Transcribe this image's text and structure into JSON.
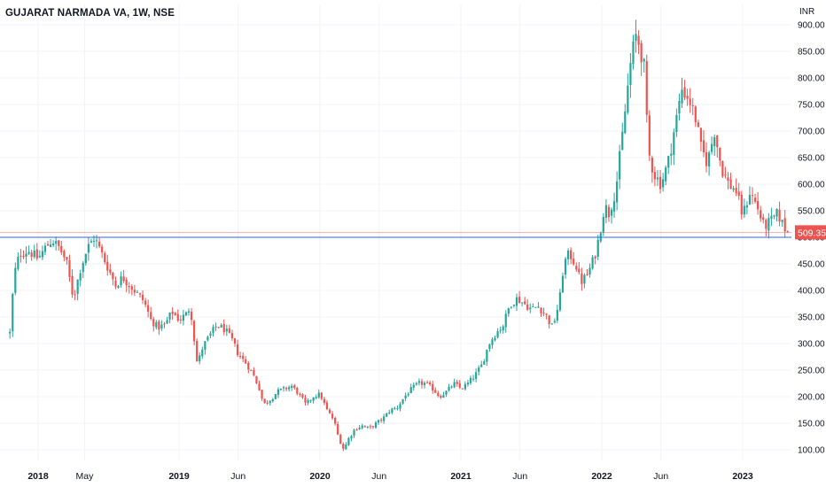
{
  "header": {
    "title": "GUJARAT NARMADA VA, 1W, NSE",
    "currency": "INR"
  },
  "colors": {
    "up": "#26a69a",
    "down": "#ef5350",
    "grid": "#f0f3fa",
    "support_line": "#2962ff",
    "current_price_line": "#ef5350",
    "axis_text": "#131722"
  },
  "chart_data": {
    "type": "candlestick",
    "title": "GUJARAT NARMADA VA, 1W, NSE",
    "ylabel": "INR",
    "ylim": [
      85,
      920
    ],
    "y_ticks": [
      "100.00",
      "150.00",
      "200.00",
      "250.00",
      "300.00",
      "350.00",
      "400.00",
      "450.00",
      "500.00",
      "550.00",
      "600.00",
      "650.00",
      "700.00",
      "750.00",
      "800.00",
      "850.00",
      "900.00"
    ],
    "x_ticks": [
      {
        "label": "2018",
        "t": 2018.0,
        "bold": true
      },
      {
        "label": "May",
        "t": 2018.33,
        "bold": false
      },
      {
        "label": "2019",
        "t": 2019.0,
        "bold": true
      },
      {
        "label": "Jun",
        "t": 2019.42,
        "bold": false
      },
      {
        "label": "2020",
        "t": 2020.0,
        "bold": true
      },
      {
        "label": "Jun",
        "t": 2020.42,
        "bold": false
      },
      {
        "label": "2021",
        "t": 2021.0,
        "bold": true
      },
      {
        "label": "Jun",
        "t": 2021.42,
        "bold": false
      },
      {
        "label": "2022",
        "t": 2022.0,
        "bold": true
      },
      {
        "label": "Jun",
        "t": 2022.42,
        "bold": false
      },
      {
        "label": "2023",
        "t": 2023.0,
        "bold": true
      }
    ],
    "x_range": [
      2017.8,
      2023.5
    ],
    "last_price": 509.35,
    "last_price_label": "509.35",
    "support_level": 500,
    "waypoints": [
      [
        2017.8,
        320
      ],
      [
        2017.83,
        430
      ],
      [
        2017.87,
        470
      ],
      [
        2017.93,
        475
      ],
      [
        2018.0,
        460
      ],
      [
        2018.05,
        480
      ],
      [
        2018.1,
        495
      ],
      [
        2018.15,
        480
      ],
      [
        2018.2,
        455
      ],
      [
        2018.25,
        385
      ],
      [
        2018.3,
        440
      ],
      [
        2018.35,
        480
      ],
      [
        2018.4,
        500
      ],
      [
        2018.45,
        470
      ],
      [
        2018.5,
        440
      ],
      [
        2018.55,
        410
      ],
      [
        2018.6,
        425
      ],
      [
        2018.65,
        410
      ],
      [
        2018.7,
        395
      ],
      [
        2018.75,
        380
      ],
      [
        2018.8,
        345
      ],
      [
        2018.85,
        330
      ],
      [
        2018.9,
        335
      ],
      [
        2018.95,
        360
      ],
      [
        2019.0,
        345
      ],
      [
        2019.05,
        355
      ],
      [
        2019.08,
        370
      ],
      [
        2019.1,
        325
      ],
      [
        2019.13,
        260
      ],
      [
        2019.17,
        295
      ],
      [
        2019.23,
        320
      ],
      [
        2019.27,
        335
      ],
      [
        2019.33,
        325
      ],
      [
        2019.38,
        305
      ],
      [
        2019.42,
        280
      ],
      [
        2019.47,
        265
      ],
      [
        2019.52,
        245
      ],
      [
        2019.57,
        215
      ],
      [
        2019.6,
        185
      ],
      [
        2019.65,
        195
      ],
      [
        2019.7,
        210
      ],
      [
        2019.75,
        215
      ],
      [
        2019.8,
        220
      ],
      [
        2019.85,
        205
      ],
      [
        2019.9,
        185
      ],
      [
        2019.95,
        200
      ],
      [
        2020.0,
        205
      ],
      [
        2020.05,
        175
      ],
      [
        2020.1,
        155
      ],
      [
        2020.13,
        125
      ],
      [
        2020.17,
        100
      ],
      [
        2020.2,
        120
      ],
      [
        2020.25,
        140
      ],
      [
        2020.3,
        145
      ],
      [
        2020.35,
        140
      ],
      [
        2020.4,
        150
      ],
      [
        2020.45,
        160
      ],
      [
        2020.5,
        175
      ],
      [
        2020.55,
        180
      ],
      [
        2020.6,
        200
      ],
      [
        2020.65,
        215
      ],
      [
        2020.7,
        225
      ],
      [
        2020.75,
        225
      ],
      [
        2020.8,
        215
      ],
      [
        2020.85,
        200
      ],
      [
        2020.9,
        210
      ],
      [
        2020.95,
        225
      ],
      [
        2021.0,
        215
      ],
      [
        2021.05,
        225
      ],
      [
        2021.1,
        240
      ],
      [
        2021.15,
        260
      ],
      [
        2021.2,
        300
      ],
      [
        2021.25,
        320
      ],
      [
        2021.3,
        335
      ],
      [
        2021.35,
        375
      ],
      [
        2021.4,
        385
      ],
      [
        2021.45,
        375
      ],
      [
        2021.5,
        365
      ],
      [
        2021.55,
        370
      ],
      [
        2021.6,
        355
      ],
      [
        2021.65,
        330
      ],
      [
        2021.7,
        380
      ],
      [
        2021.73,
        450
      ],
      [
        2021.77,
        470
      ],
      [
        2021.82,
        445
      ],
      [
        2021.85,
        415
      ],
      [
        2021.9,
        430
      ],
      [
        2021.95,
        465
      ],
      [
        2021.98,
        500
      ],
      [
        2022.02,
        560
      ],
      [
        2022.05,
        545
      ],
      [
        2022.1,
        590
      ],
      [
        2022.15,
        700
      ],
      [
        2022.2,
        820
      ],
      [
        2022.24,
        880
      ],
      [
        2022.27,
        860
      ],
      [
        2022.3,
        820
      ],
      [
        2022.33,
        660
      ],
      [
        2022.37,
        620
      ],
      [
        2022.42,
        600
      ],
      [
        2022.47,
        640
      ],
      [
        2022.52,
        710
      ],
      [
        2022.57,
        780
      ],
      [
        2022.62,
        760
      ],
      [
        2022.67,
        720
      ],
      [
        2022.7,
        670
      ],
      [
        2022.75,
        640
      ],
      [
        2022.8,
        700
      ],
      [
        2022.85,
        630
      ],
      [
        2022.9,
        600
      ],
      [
        2022.95,
        590
      ],
      [
        2023.0,
        540
      ],
      [
        2023.05,
        585
      ],
      [
        2023.1,
        560
      ],
      [
        2023.15,
        520
      ],
      [
        2023.2,
        530
      ],
      [
        2023.25,
        545
      ],
      [
        2023.29,
        520
      ],
      [
        2023.32,
        509.35
      ]
    ]
  }
}
